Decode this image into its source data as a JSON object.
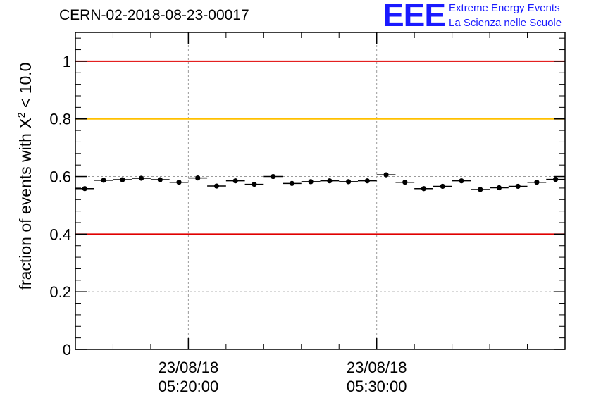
{
  "header": {
    "run_id": "CERN-02-2018-08-23-00017",
    "logo_mark": "EEE",
    "logo_line1": "Extreme Energy Events",
    "logo_line2": "La Scienza nelle Scuole"
  },
  "chart_data": {
    "type": "scatter",
    "ylabel_prefix": "fraction of events with ",
    "ylabel_symbol": "X",
    "ylabel_exp": "2",
    "ylabel_suffix": " < 10.0",
    "ylim": [
      0,
      1.1
    ],
    "yticks": [
      0,
      0.2,
      0.4,
      0.6,
      0.8,
      1
    ],
    "ytick_labels": [
      "0",
      "0.2",
      "0.4",
      "0.6",
      "0.8",
      "1"
    ],
    "xlim_minutes": [
      14,
      40
    ],
    "xticks_minutes": [
      20,
      30
    ],
    "xtick_labels": [
      {
        "date": "23/08/18",
        "time": "05:20:00"
      },
      {
        "date": "23/08/18",
        "time": "05:30:00"
      }
    ],
    "grid": true,
    "reference_lines": [
      {
        "y": 1.0,
        "color": "#e00000"
      },
      {
        "y": 0.8,
        "color": "#ffc000"
      },
      {
        "y": 0.4,
        "color": "#e00000"
      }
    ],
    "series": [
      {
        "x_minutes": [
          14.5,
          15.5,
          16.5,
          17.5,
          18.5,
          19.5,
          20.5,
          21.5,
          22.5,
          23.5,
          24.5,
          25.5,
          26.5,
          27.5,
          28.5,
          29.5,
          30.5,
          31.5,
          32.5,
          33.5,
          34.5,
          35.5,
          36.5,
          37.5,
          38.5,
          39.5
        ],
        "values": [
          0.558,
          0.587,
          0.589,
          0.594,
          0.589,
          0.58,
          0.595,
          0.567,
          0.585,
          0.573,
          0.6,
          0.576,
          0.582,
          0.585,
          0.582,
          0.585,
          0.606,
          0.58,
          0.558,
          0.566,
          0.585,
          0.555,
          0.561,
          0.566,
          0.58,
          0.59
        ],
        "errors": [
          0.007,
          0.007,
          0.007,
          0.007,
          0.007,
          0.007,
          0.007,
          0.007,
          0.007,
          0.007,
          0.007,
          0.007,
          0.007,
          0.007,
          0.007,
          0.007,
          0.007,
          0.007,
          0.007,
          0.007,
          0.007,
          0.007,
          0.007,
          0.007,
          0.007,
          0.007
        ]
      }
    ]
  }
}
